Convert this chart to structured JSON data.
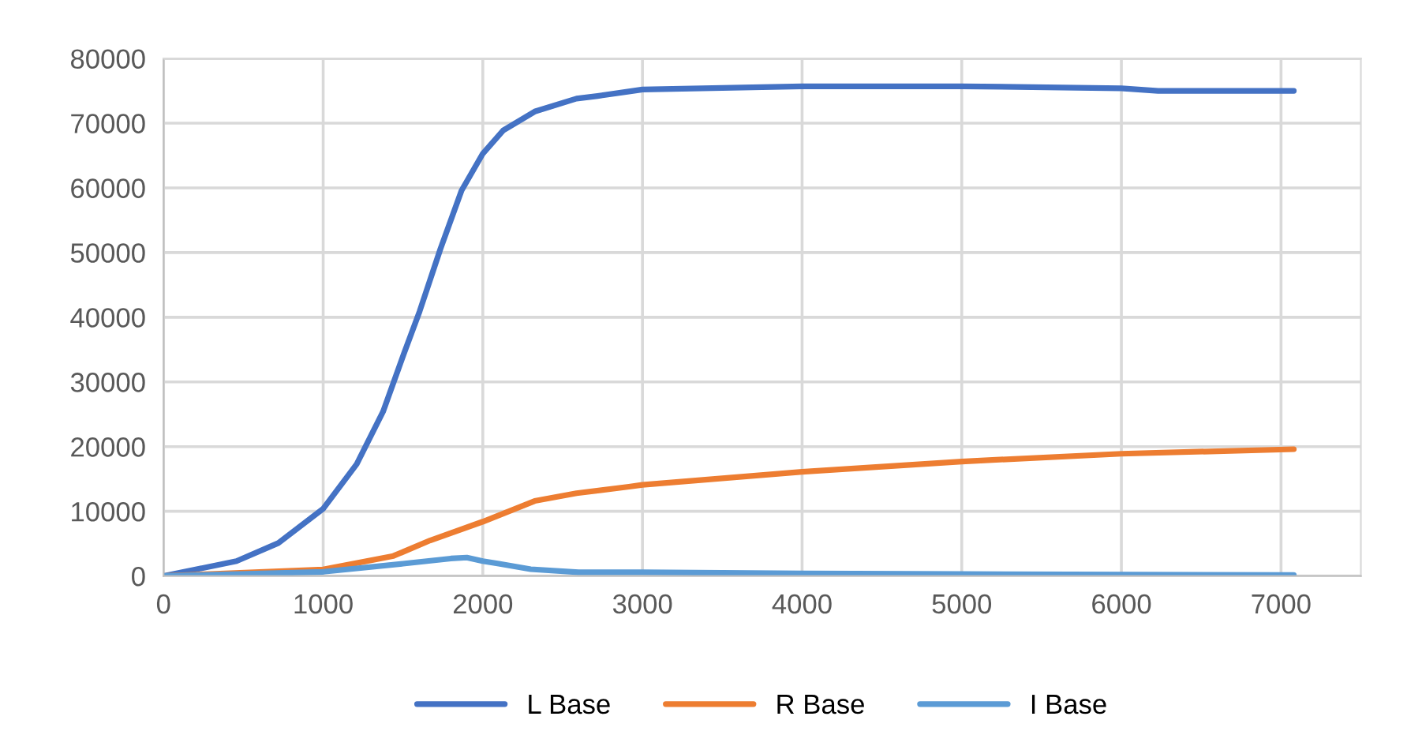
{
  "chart_data": {
    "type": "line",
    "xlim": [
      0,
      7500
    ],
    "xticks": [
      0,
      1000,
      2000,
      3000,
      4000,
      5000,
      6000,
      7000
    ],
    "ylim": [
      0,
      80000
    ],
    "yticks": [
      0,
      10000,
      20000,
      30000,
      40000,
      50000,
      60000,
      70000,
      80000
    ],
    "grid": true,
    "legend": "bottom",
    "marker": "none",
    "line_style": "solid",
    "series": [
      {
        "name": "L Base",
        "color": "#4472c4",
        "x": [
          0,
          457,
          719,
          1000,
          1210,
          1375,
          1506,
          1604,
          1735,
          1867,
          2000,
          2128,
          2325,
          2587,
          2719,
          2915,
          3000,
          4000,
          5000,
          6000,
          6230,
          7080
        ],
        "values": [
          0,
          2300,
          5100,
          10400,
          17300,
          25400,
          34400,
          40900,
          50600,
          59600,
          65300,
          68900,
          71800,
          73800,
          74200,
          74900,
          75200,
          75700,
          75700,
          75400,
          75000,
          75000
        ]
      },
      {
        "name": "R Base",
        "color": "#ed7d31",
        "x": [
          0,
          1000,
          1440,
          1670,
          2000,
          2325,
          2587,
          2915,
          3000,
          4000,
          5000,
          6000,
          7080
        ],
        "values": [
          0,
          1000,
          3100,
          5500,
          8400,
          11600,
          12800,
          13800,
          14100,
          16100,
          17700,
          18900,
          19600
        ]
      },
      {
        "name": "I Base",
        "color": "#5b9bd5",
        "x": [
          0,
          1000,
          1500,
          1800,
          1900,
          2000,
          2100,
          2300,
          2600,
          3000,
          4000,
          5000,
          7080
        ],
        "values": [
          0,
          650,
          1900,
          2700,
          2850,
          2300,
          1900,
          1050,
          570,
          570,
          400,
          300,
          150
        ]
      }
    ]
  }
}
